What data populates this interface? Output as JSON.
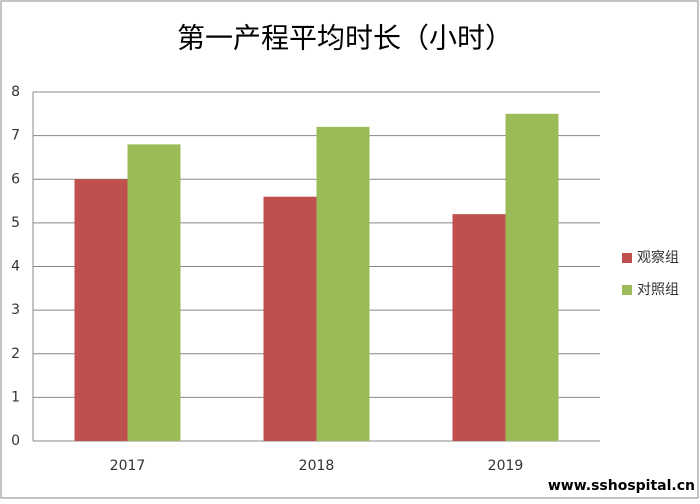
{
  "chart_data": {
    "type": "bar",
    "title": "第一产程平均时长（小时）",
    "categories": [
      "2017",
      "2018",
      "2019"
    ],
    "series": [
      {
        "name": "观察组",
        "color": "#c0504d",
        "values": [
          6,
          5.6,
          5.2
        ]
      },
      {
        "name": "对照组",
        "color": "#9bbb59",
        "values": [
          6.8,
          7.2,
          7.5
        ]
      }
    ],
    "ylim": [
      0,
      8
    ],
    "yticks": [
      0,
      1,
      2,
      3,
      4,
      5,
      6,
      7,
      8
    ],
    "grid": true,
    "legend": "right",
    "watermark": "www.sshospital.cn"
  }
}
